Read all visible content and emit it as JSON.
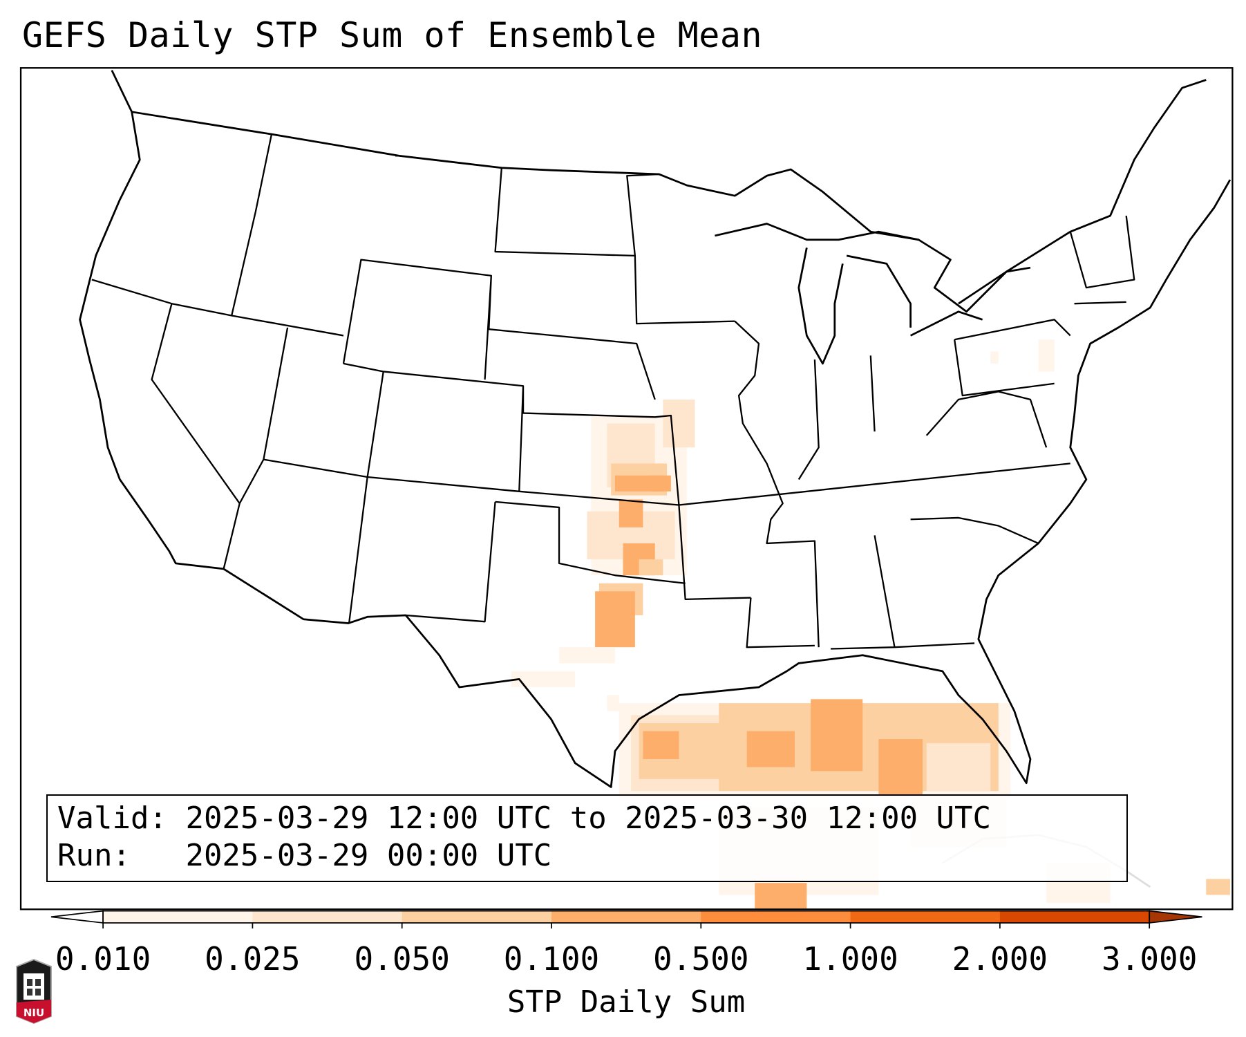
{
  "title": "GEFS Daily STP Sum of Ensemble Mean",
  "info": {
    "valid_label": "Valid:",
    "valid_value": "2025-03-29 12:00 UTC to 2025-03-30 12:00 UTC",
    "run_label": "Run:",
    "run_value": "2025-03-29 00:00 UTC"
  },
  "colorbar": {
    "label": "STP Daily Sum",
    "ticks": [
      "0.010",
      "0.025",
      "0.050",
      "0.100",
      "0.500",
      "1.000",
      "2.000",
      "3.000"
    ],
    "colors": [
      "#fff5eb",
      "#fee6ce",
      "#fdd0a2",
      "#fdae6b",
      "#fd8d3c",
      "#f16913",
      "#d94801"
    ],
    "under_color": "#ffffff",
    "over_color": "#a63603"
  },
  "logo": {
    "text": "NIU"
  }
}
